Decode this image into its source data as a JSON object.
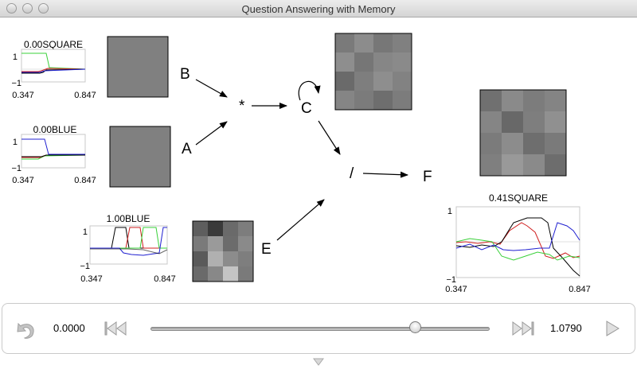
{
  "window": {
    "title": "Question Answering with Memory"
  },
  "nodes": {
    "b": "B",
    "a": "A",
    "star": "*",
    "c": "C",
    "slash": "/",
    "e": "E",
    "f": "F"
  },
  "plots": {
    "square1": {
      "label": "0.00SQUARE",
      "ymax": "1",
      "ymin": "−1",
      "xmin": "0.347",
      "xmax": "0.847"
    },
    "blue1": {
      "label": "0.00BLUE",
      "ymax": "1",
      "ymin": "−1",
      "xmin": "0.347",
      "xmax": "0.847"
    },
    "blue2": {
      "label": "1.00BLUE",
      "ymax": "1",
      "ymin": "−1",
      "xmin": "0.347",
      "xmax": "0.847"
    },
    "square2": {
      "label": "0.41SQUARE",
      "ymax": "1",
      "ymin": "−1",
      "xmin": "0.347",
      "xmax": "0.847"
    }
  },
  "grids": {
    "b": {
      "rows": 1,
      "cols": 1,
      "cells": [
        "#808080"
      ]
    },
    "a": {
      "rows": 1,
      "cols": 1,
      "cells": [
        "#808080"
      ]
    },
    "c": {
      "rows": 4,
      "cols": 4,
      "cells": [
        "#7a7a7a",
        "#8c8c8c",
        "#777777",
        "#808080",
        "#8e8e8e",
        "#767676",
        "#868686",
        "#8a8a8a",
        "#6a6a6a",
        "#7e7e7e",
        "#8e8e8e",
        "#828282",
        "#858585",
        "#7b7b7b",
        "#6e6e6e",
        "#7c7c7c"
      ]
    },
    "f": {
      "rows": 4,
      "cols": 4,
      "cells": [
        "#707070",
        "#8a8a8a",
        "#7c7c7c",
        "#848484",
        "#858585",
        "#686868",
        "#7e7e7e",
        "#909090",
        "#7b7b7b",
        "#8c8c8c",
        "#6e6e6e",
        "#7a7a7a",
        "#7f7f7f",
        "#999999",
        "#8a8a8a",
        "#6d6d6d"
      ]
    },
    "e": {
      "rows": 4,
      "cols": 4,
      "cells": [
        "#5e5e5e",
        "#3a3a3a",
        "#6a6a6a",
        "#7d7d7d",
        "#7a7a7a",
        "#9a9a9a",
        "#6c6c6c",
        "#8a8a8a",
        "#5a5a5a",
        "#b0b0b0",
        "#8c8c8c",
        "#7e7e7e",
        "#6a6a6a",
        "#888888",
        "#c4c4c4",
        "#7a7a7a"
      ]
    }
  },
  "transport": {
    "start_time": "0.0000",
    "end_time": "1.0790",
    "position": 0.78
  }
}
